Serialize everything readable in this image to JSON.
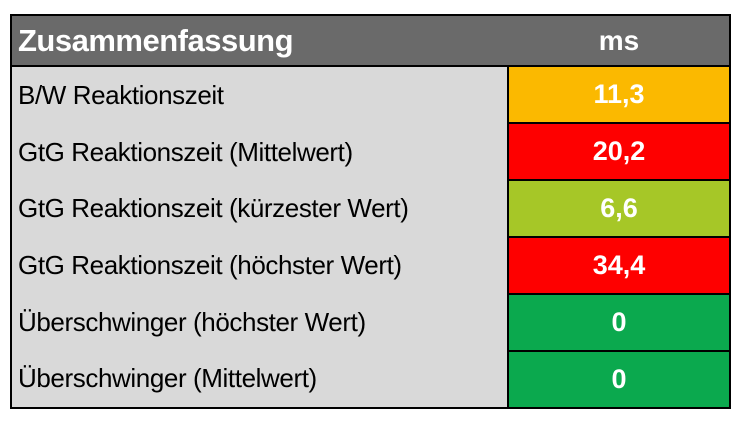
{
  "chart_data": {
    "type": "table",
    "title": "Zusammenfassung",
    "unit_header": "ms",
    "columns": [
      "Zusammenfassung",
      "ms"
    ],
    "rows": [
      {
        "label": "B/W Reaktionszeit",
        "value": 11.3,
        "display": "11,3",
        "color": "#fbb900",
        "rating": "amber"
      },
      {
        "label": "GtG Reaktionszeit (Mittelwert)",
        "value": 20.2,
        "display": "20,2",
        "color": "#fe0000",
        "rating": "red"
      },
      {
        "label": "GtG Reaktionszeit (kürzester Wert)",
        "value": 6.6,
        "display": "6,6",
        "color": "#a6c727",
        "rating": "yellow-green"
      },
      {
        "label": "GtG Reaktionszeit (höchster Wert)",
        "value": 34.4,
        "display": "34,4",
        "color": "#fe0000",
        "rating": "red"
      },
      {
        "label": "Überschwinger (höchster Wert)",
        "value": 0,
        "display": "0",
        "color": "#0ba94e",
        "rating": "green"
      },
      {
        "label": "Überschwinger (Mittelwert)",
        "value": 0,
        "display": "0",
        "color": "#0ba94e",
        "rating": "green"
      }
    ],
    "layout": {
      "legend": "none",
      "grid": "cell-borders-on-value-column-only"
    },
    "colors": {
      "header_bg": "#6a6a6a",
      "header_text": "#ffffff",
      "label_bg": "#d9d9d9",
      "label_text": "#000000",
      "value_text": "#ffffff",
      "border": "#000000",
      "page_bg": "#ffffff"
    }
  }
}
